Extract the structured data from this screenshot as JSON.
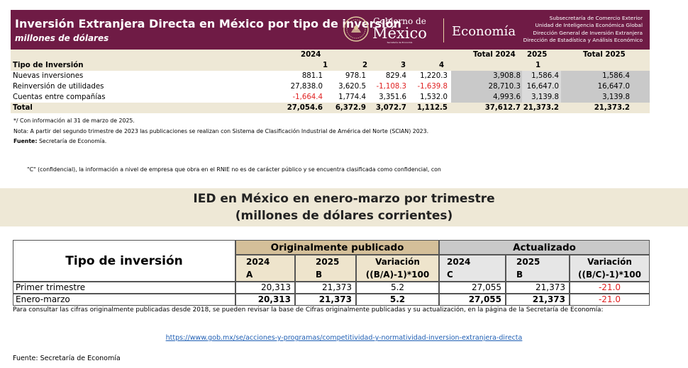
{
  "header": {
    "title": "Inversión Extranjera Directa en México por tipo de inversión",
    "subtitle": "millones de dólares",
    "gobierno_small": "Gobierno de",
    "gobierno_big": "México",
    "secretaria_tiny": "Secretaría de Economía",
    "economia": "Economía",
    "subsecretaria": [
      "Subsecretaría de Comercio Exterior",
      "Unidad de Inteligencia Económica Global",
      "Dirección General de Inversión Extranjera",
      "Dirección de Estadística y Análisis Económico"
    ],
    "brand_color": "#6f1b45"
  },
  "table1": {
    "year_2024": "2024",
    "total_2024": "Total 2024",
    "year_2025": "2025",
    "total_2025": "Total 2025",
    "row_label_header": "Tipo de Inversión",
    "quarters_2024": [
      "1",
      "2",
      "3",
      "4"
    ],
    "quarters_2025": [
      "1"
    ],
    "rows": [
      {
        "label": "Nuevas inversiones",
        "q": [
          "881.1",
          "978.1",
          "829.4",
          "1,220.3"
        ],
        "total2024": "3,908.8",
        "q2025": "1,586.4",
        "total2025": "1,586.4"
      },
      {
        "label": "Reinversión de utilidades",
        "q": [
          "27,838.0",
          "3,620.5",
          "-1,108.3",
          "-1,639.8"
        ],
        "total2024": "28,710.3",
        "q2025": "16,647.0",
        "total2025": "16,647.0"
      },
      {
        "label": "Cuentas entre compañías",
        "q": [
          "-1,664.4",
          "1,774.4",
          "3,351.6",
          "1,532.0"
        ],
        "total2024": "4,993.6",
        "q2025": "3,139.8",
        "total2025": "3,139.8"
      }
    ],
    "total": {
      "label": "Total",
      "q": [
        "27,054.6",
        "6,372.9",
        "3,072.7",
        "1,112.5"
      ],
      "total2024": "37,612.7",
      "q2025": "21,373.2",
      "total2025": "21,373.2"
    }
  },
  "notes": {
    "n1": "*/ Con información al 31 de marzo de 2025.",
    "n2": "Nota: A partir del segundo trimestre de 2023 las publicaciones se realizan con Sistema de Clasificación Industrial de América del Norte (SCIAN) 2023.",
    "fuente_label": "Fuente:",
    "fuente_text": " Secretaría de Economía.",
    "confidencial": "\"C\"  (confidencial), la información a nivel de empresa que obra en el RNIE no es de carácter público y se encuentra clasificada como confidencial, con"
  },
  "band": {
    "line1": "IED en México en enero-marzo por trimestre",
    "line2": "(millones de dólares corrientes)"
  },
  "table2": {
    "row_header": "Tipo de inversión",
    "group_original": "Originalmente publicado",
    "group_updated": "Actualizado",
    "orig_cols": [
      {
        "year": "2024",
        "letter": "A"
      },
      {
        "year": "2025",
        "letter": "B"
      },
      {
        "year": "Variación",
        "letter": "((B/A)-1)*100"
      }
    ],
    "upd_cols": [
      {
        "year": "2024",
        "letter": "C"
      },
      {
        "year": "2025",
        "letter": "B"
      },
      {
        "year": "Variación",
        "letter": "((B/C)-1)*100"
      }
    ],
    "rows": [
      {
        "label": "Primer trimestre",
        "vals": [
          "20,313",
          "21,373",
          "5.2",
          "27,055",
          "21,373",
          "-21.0"
        ]
      },
      {
        "label": "Enero-marzo",
        "vals": [
          "20,313",
          "21,373",
          "5.2",
          "27,055",
          "21,373",
          "-21.0"
        ]
      }
    ]
  },
  "footer": {
    "consult": "Para consultar las cifras originalmente publicadas desde 2018, se pueden revisar la base de Cifras originalmente publicadas y su actualización, en la página de la Secretaría de Economía:",
    "url": "https://www.gob.mx/se/acciones-y-programas/competitividad-y-normatividad-inversion-extranjera-directa",
    "fuente": "Fuente: Secretaría de Economía"
  }
}
